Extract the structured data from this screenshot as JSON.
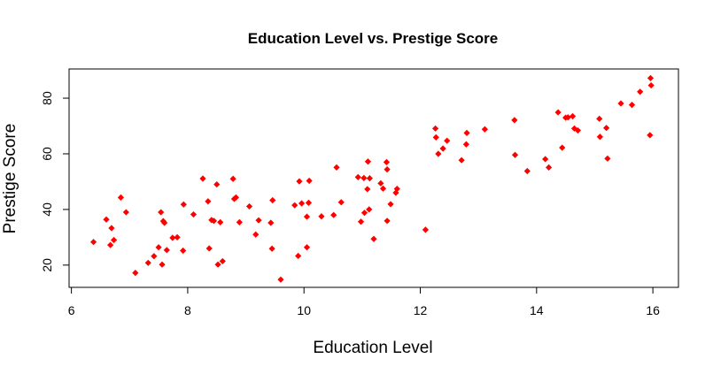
{
  "chart_data": {
    "type": "scatter",
    "title": "Education Level vs. Prestige Score",
    "xlabel": "Education Level",
    "ylabel": "Prestige Score",
    "xlim": [
      5.96,
      16.44
    ],
    "ylim": [
      12.0,
      90.5
    ],
    "xticks": [
      6,
      8,
      10,
      12,
      14,
      16
    ],
    "yticks": [
      20,
      40,
      60,
      80
    ],
    "grid": false,
    "legend": "none",
    "point_color": "#ff0000",
    "marker": "diamond",
    "points": [
      [
        6.38,
        28.3
      ],
      [
        6.6,
        36.4
      ],
      [
        6.67,
        27.2
      ],
      [
        6.69,
        33.3
      ],
      [
        6.73,
        29.0
      ],
      [
        6.85,
        44.3
      ],
      [
        6.94,
        39.0
      ],
      [
        7.1,
        17.2
      ],
      [
        7.32,
        20.8
      ],
      [
        7.42,
        23.2
      ],
      [
        7.5,
        26.4
      ],
      [
        7.54,
        39.0
      ],
      [
        7.56,
        20.2
      ],
      [
        7.58,
        35.8
      ],
      [
        7.6,
        35.2
      ],
      [
        7.64,
        25.4
      ],
      [
        7.74,
        29.8
      ],
      [
        7.82,
        30.0
      ],
      [
        7.92,
        25.2
      ],
      [
        7.93,
        41.8
      ],
      [
        8.1,
        38.2
      ],
      [
        8.26,
        51.1
      ],
      [
        8.35,
        42.9
      ],
      [
        8.37,
        26.0
      ],
      [
        8.41,
        36.2
      ],
      [
        8.45,
        35.9
      ],
      [
        8.5,
        49.0
      ],
      [
        8.52,
        20.2
      ],
      [
        8.56,
        35.4
      ],
      [
        8.6,
        21.4
      ],
      [
        8.78,
        51.0
      ],
      [
        8.8,
        43.8
      ],
      [
        8.83,
        44.3
      ],
      [
        8.89,
        35.4
      ],
      [
        9.06,
        41.1
      ],
      [
        9.17,
        31.0
      ],
      [
        9.22,
        36.1
      ],
      [
        9.43,
        35.2
      ],
      [
        9.45,
        25.9
      ],
      [
        9.46,
        43.3
      ],
      [
        9.6,
        14.8
      ],
      [
        9.84,
        41.5
      ],
      [
        9.9,
        23.3
      ],
      [
        9.92,
        50.1
      ],
      [
        9.96,
        42.2
      ],
      [
        10.05,
        37.4
      ],
      [
        10.05,
        26.4
      ],
      [
        10.08,
        42.4
      ],
      [
        10.09,
        50.3
      ],
      [
        10.3,
        37.5
      ],
      [
        10.51,
        38.0
      ],
      [
        10.56,
        55.1
      ],
      [
        10.64,
        42.6
      ],
      [
        10.93,
        51.6
      ],
      [
        10.98,
        35.6
      ],
      [
        11.03,
        51.3
      ],
      [
        11.04,
        38.8
      ],
      [
        11.09,
        47.3
      ],
      [
        11.1,
        57.2
      ],
      [
        11.12,
        40.0
      ],
      [
        11.13,
        51.2
      ],
      [
        11.2,
        29.4
      ],
      [
        11.32,
        49.4
      ],
      [
        11.36,
        47.5
      ],
      [
        11.42,
        57.0
      ],
      [
        11.43,
        54.4
      ],
      [
        11.43,
        35.9
      ],
      [
        11.49,
        41.9
      ],
      [
        11.58,
        46.0
      ],
      [
        11.6,
        47.4
      ],
      [
        12.09,
        32.7
      ],
      [
        12.26,
        69.1
      ],
      [
        12.27,
        65.9
      ],
      [
        12.31,
        60.0
      ],
      [
        12.39,
        61.9
      ],
      [
        12.46,
        64.7
      ],
      [
        12.71,
        57.7
      ],
      [
        12.79,
        63.4
      ],
      [
        12.8,
        67.5
      ],
      [
        13.11,
        68.8
      ],
      [
        13.62,
        72.1
      ],
      [
        13.63,
        59.6
      ],
      [
        13.84,
        53.8
      ],
      [
        14.15,
        58.1
      ],
      [
        14.21,
        55.1
      ],
      [
        14.37,
        74.9
      ],
      [
        14.44,
        62.2
      ],
      [
        14.5,
        73.0
      ],
      [
        14.54,
        73.1
      ],
      [
        14.62,
        73.5
      ],
      [
        14.65,
        69.1
      ],
      [
        14.71,
        68.4
      ],
      [
        15.08,
        72.6
      ],
      [
        15.09,
        66.1
      ],
      [
        15.2,
        69.3
      ],
      [
        15.22,
        58.3
      ],
      [
        15.45,
        78.1
      ],
      [
        15.64,
        77.6
      ],
      [
        15.78,
        82.3
      ],
      [
        15.95,
        66.7
      ],
      [
        15.96,
        87.2
      ],
      [
        15.97,
        84.6
      ]
    ]
  }
}
